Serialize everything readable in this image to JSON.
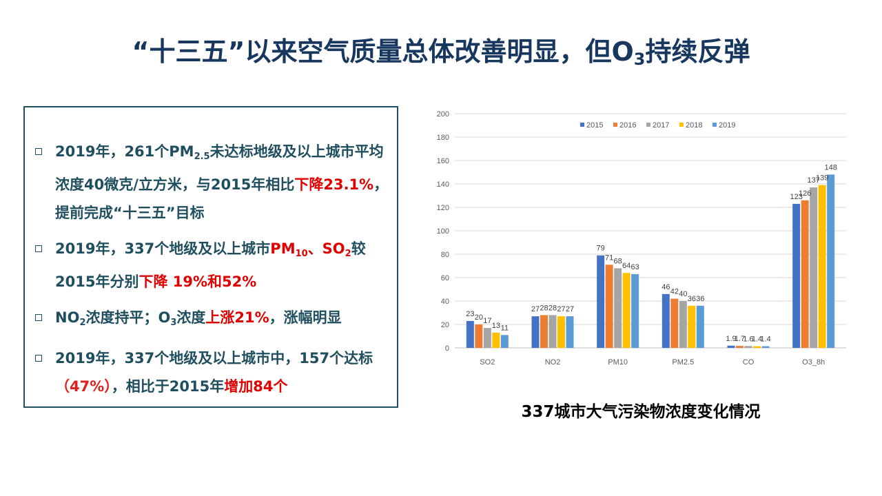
{
  "slide": {
    "title_main": "“十三五”以来空气质量总体改善明显，但O",
    "title_sub": "3",
    "title_tail": "持续反弹",
    "caption": "337城市大气污染物浓度变化情况"
  },
  "bullets": {
    "b1": {
      "t1": "2019年，261个PM",
      "t1sub": "2.5",
      "t2": "未达标地级及以上城市平均浓度40微克/立方米，与2015年相比",
      "t3": "下降23.1%",
      "t4": "，提前完成“十三五”目标"
    },
    "b2": {
      "t1": "2019年，337个地级及以上城市",
      "t2": "PM",
      "t2sub": "10",
      "t3": "、SO",
      "t3sub": "2",
      "t4": "较2015年分别",
      "t5": "下降 19%和52%"
    },
    "b3": {
      "t1": "NO",
      "t1sub": "2",
      "t2": "浓度持平；O",
      "t2sub": "3",
      "t3": "浓度",
      "t4": "上涨21%",
      "t5": "，涨幅明显"
    },
    "b4": {
      "t1": "2019年，337个地级及以上城市中，157个达标",
      "t2": "（47%）",
      "t3": "，相比于2015年",
      "t4": "增加84个"
    }
  },
  "chart_data": {
    "type": "bar",
    "categories": [
      "SO2",
      "NO2",
      "PM10",
      "PM2.5",
      "CO",
      "O3_8h"
    ],
    "series": [
      {
        "name": "2015",
        "color": "#4472c4",
        "values": [
          23,
          27,
          79,
          46,
          1.9,
          123
        ]
      },
      {
        "name": "2016",
        "color": "#ed7d31",
        "values": [
          20,
          28,
          71,
          42,
          1.7,
          126
        ]
      },
      {
        "name": "2017",
        "color": "#a5a5a5",
        "values": [
          17,
          28,
          68,
          40,
          1.6,
          137
        ]
      },
      {
        "name": "2018",
        "color": "#ffc000",
        "values": [
          13,
          27,
          64,
          36,
          1.4,
          139
        ]
      },
      {
        "name": "2019",
        "color": "#5b9bd5",
        "values": [
          11,
          27,
          63,
          36,
          1.4,
          148
        ]
      }
    ],
    "ylim": [
      0,
      200
    ],
    "yticks": [
      0,
      20,
      40,
      60,
      80,
      100,
      120,
      140,
      160,
      180,
      200
    ],
    "grid": true,
    "legend": "top-center"
  }
}
